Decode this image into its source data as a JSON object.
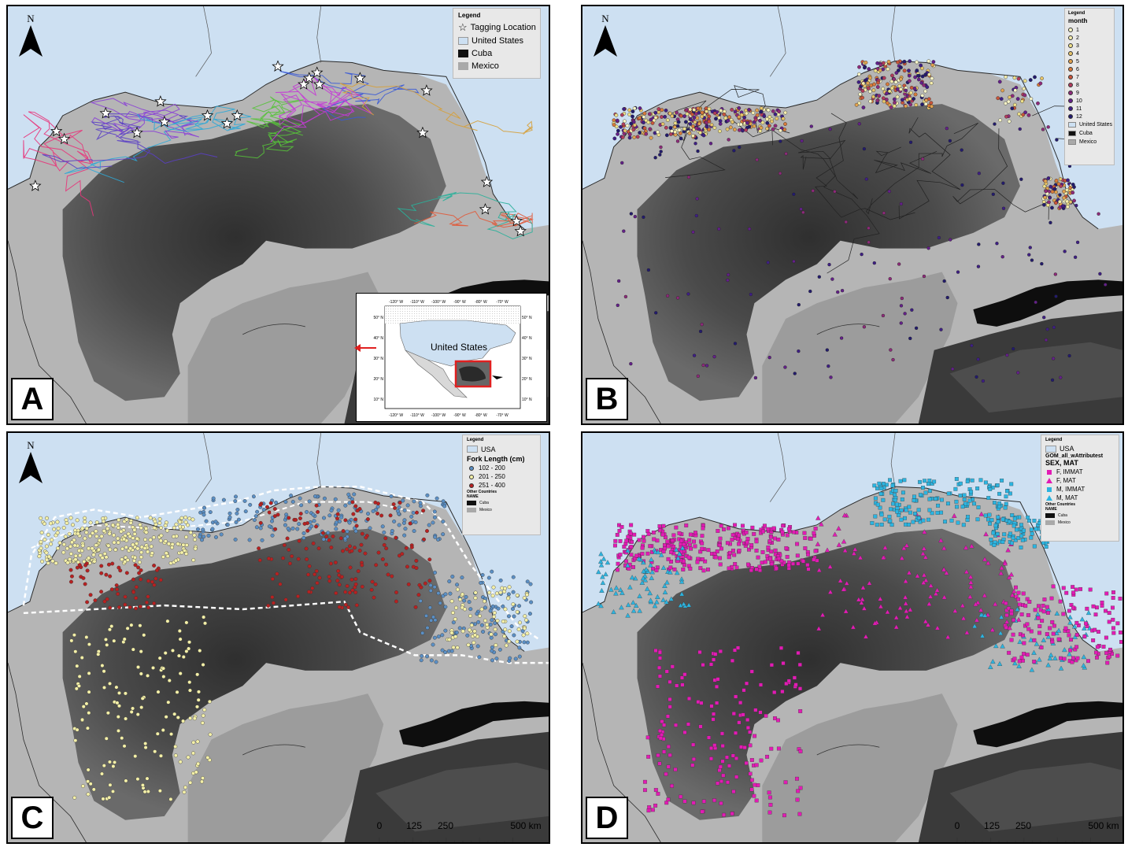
{
  "colors": {
    "land": "#c9c9c9",
    "usa": "#cde0f2",
    "cuba": "#111111",
    "mexico": "#a9a9a9",
    "shelf": "#b8b8b8",
    "deep": "#4a4a4a",
    "panel_border": "#000000"
  },
  "north_label": "N",
  "panel_a": {
    "letter": "A",
    "legend": {
      "title": "Legend",
      "items": [
        {
          "label": "Tagging Location",
          "icon": "star-icon"
        },
        {
          "label": "United States",
          "color": "#cde0f2"
        },
        {
          "label": "Cuba",
          "color": "#111111"
        },
        {
          "label": "Mexico",
          "color": "#a9a9a9"
        }
      ]
    },
    "inset": {
      "country_label": "United States",
      "top_ticks": [
        "-120° W",
        "-110° W",
        "-100° W",
        "-90° W",
        "-80° W",
        "-70° W"
      ],
      "bottom_ticks": [
        "-120° W",
        "-110° W",
        "-100° W",
        "-90° W",
        "-80° W",
        "-70° W"
      ],
      "left_ticks": [
        "50° N",
        "40° N",
        "30° N",
        "20° N",
        "10° N"
      ],
      "right_ticks": [
        "50° N",
        "40° N",
        "30° N",
        "20° N",
        "10° N"
      ]
    }
  },
  "panel_b": {
    "letter": "B",
    "legend": {
      "title": "Legend",
      "subtitle": "month",
      "months": [
        {
          "label": "1",
          "color": "#f7f5c8"
        },
        {
          "label": "2",
          "color": "#f4ecac"
        },
        {
          "label": "3",
          "color": "#eee08a"
        },
        {
          "label": "4",
          "color": "#e8c56a"
        },
        {
          "label": "5",
          "color": "#e2a24f"
        },
        {
          "label": "6",
          "color": "#d97b3b"
        },
        {
          "label": "7",
          "color": "#c9553a"
        },
        {
          "label": "8",
          "color": "#b23c5c"
        },
        {
          "label": "9",
          "color": "#8e2a7a"
        },
        {
          "label": "10",
          "color": "#64208a"
        },
        {
          "label": "11",
          "color": "#3f1f86"
        },
        {
          "label": "12",
          "color": "#231b6e"
        }
      ],
      "regions": [
        {
          "label": "United States",
          "color": "#cde0f2"
        },
        {
          "label": "Cuba",
          "color": "#111111"
        },
        {
          "label": "Mexico",
          "color": "#a9a9a9"
        }
      ]
    }
  },
  "panel_c": {
    "letter": "C",
    "legend": {
      "title": "Legend",
      "usa_label": "USA",
      "subtitle": "Fork Length (cm)",
      "classes": [
        {
          "label": "102 - 200",
          "color": "#5b8fc4"
        },
        {
          "label": "201 - 250",
          "color": "#f4f0a8"
        },
        {
          "label": "251 - 400",
          "color": "#b82121"
        }
      ],
      "other_label": "Other Countries",
      "name_label": "NAME",
      "countries": [
        {
          "label": "Cuba",
          "color": "#111111"
        },
        {
          "label": "Mexico",
          "color": "#a9a9a9"
        }
      ]
    },
    "scalebar": {
      "labels": [
        "0",
        "125",
        "250",
        "500 km"
      ]
    }
  },
  "panel_d": {
    "letter": "D",
    "legend": {
      "title": "Legend",
      "usa_label": "USA",
      "layer_label": "GOM_all_wAttributest",
      "subtitle": "SEX, MAT",
      "classes": [
        {
          "label": "F, IMMAT",
          "color": "#e21bb4",
          "shape": "square"
        },
        {
          "label": "F, MAT",
          "color": "#e21bb4",
          "shape": "triangle"
        },
        {
          "label": "M, IMMAT",
          "color": "#2cb4e0",
          "shape": "square"
        },
        {
          "label": "M, MAT",
          "color": "#2cb4e0",
          "shape": "triangle"
        }
      ],
      "other_label": "Other Countries",
      "name_label": "NAME",
      "countries": [
        {
          "label": "Cuba",
          "color": "#111111"
        },
        {
          "label": "Mexico",
          "color": "#a9a9a9"
        }
      ]
    },
    "scalebar": {
      "labels": [
        "0",
        "125",
        "250",
        "500 km"
      ]
    }
  }
}
